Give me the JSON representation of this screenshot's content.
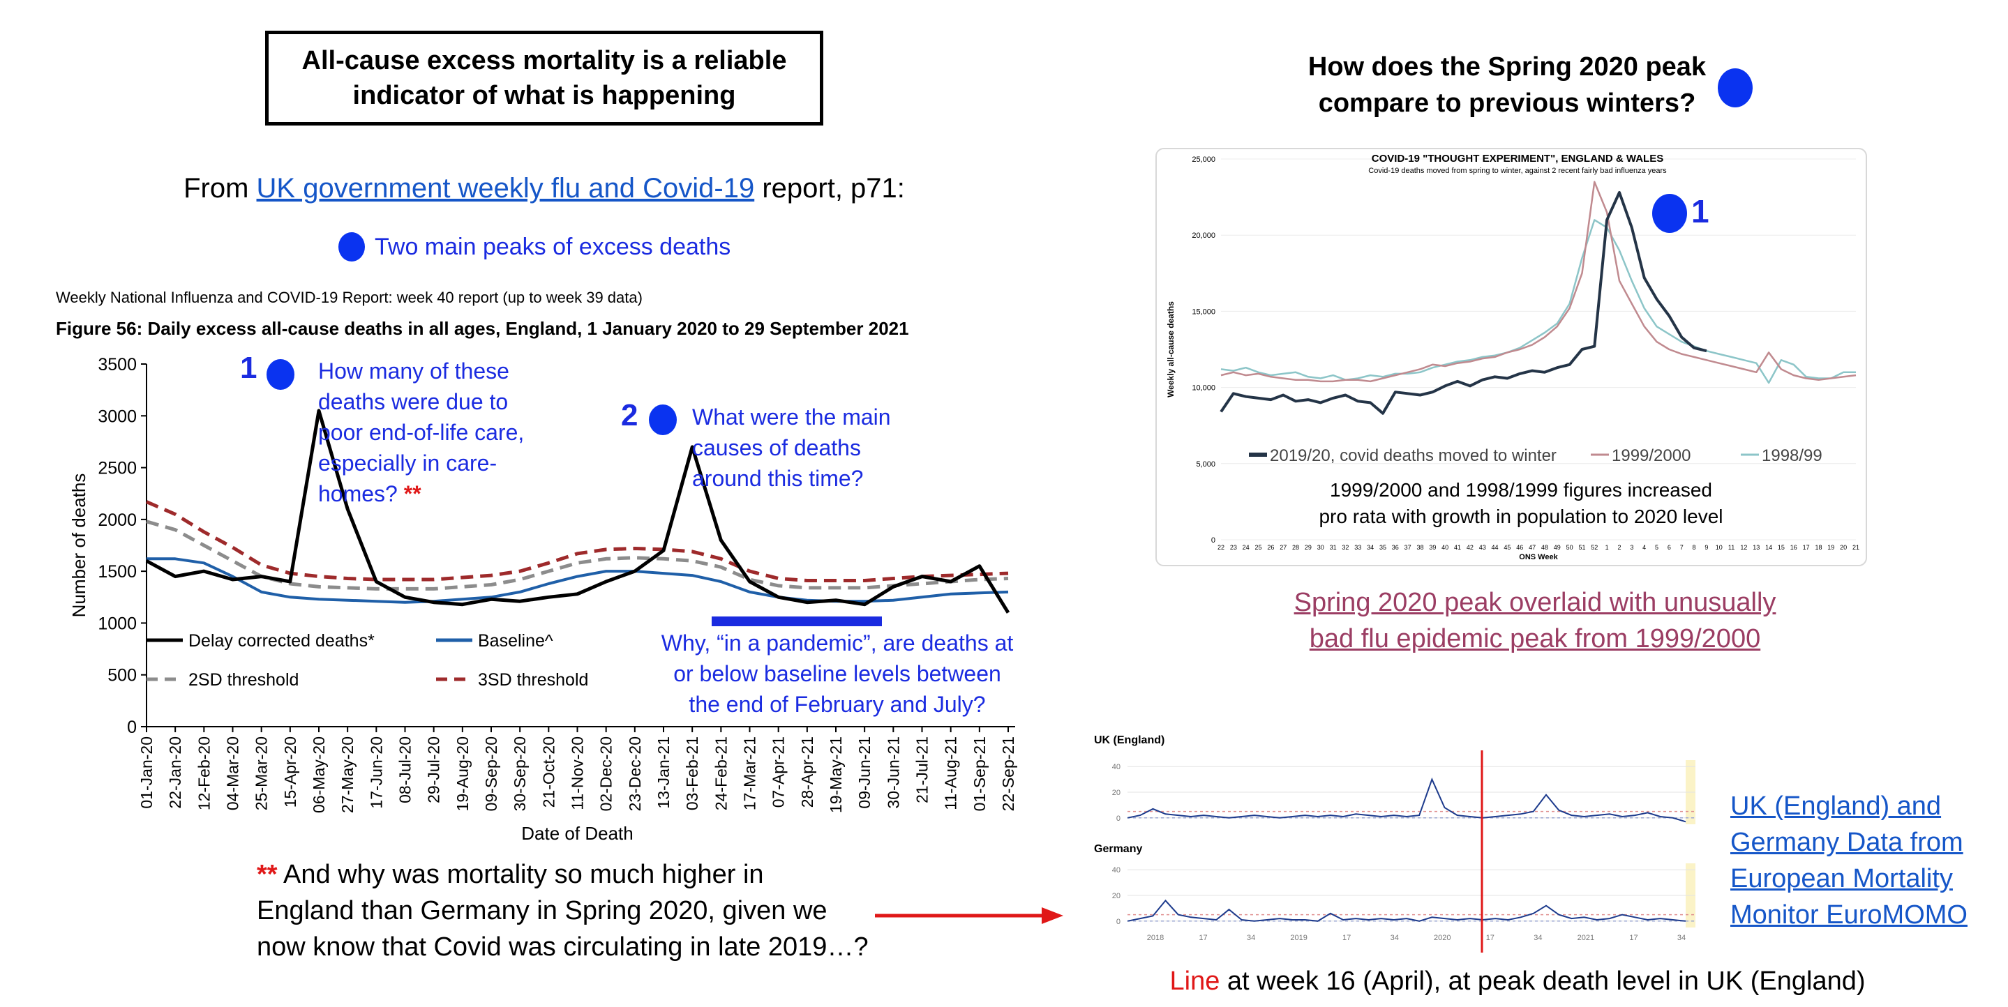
{
  "left_panel": {
    "title_line1": "All-cause excess mortality is a reliable",
    "title_line2": "indicator of what is happening",
    "from_prefix": "From ",
    "from_link": "UK government weekly flu and Covid-19",
    "from_suffix": " report, p71:",
    "peaks_note": "Two main peaks of excess deaths",
    "report_header": "Weekly National Influenza and COVID-19 Report: week 40 report (up to week 39 data)",
    "figure_title": "Figure 56: Daily excess all-cause deaths in all ages, England, 1 January 2020 to 29 September 2021",
    "annotation_1_number": "1",
    "annotation_1_lines": [
      "How many of these",
      "deaths were due to",
      "poor end-of-life care,",
      "especially in care-",
      "homes? "
    ],
    "annotation_1_stars": "**",
    "annotation_2_number": "2",
    "annotation_2_lines": [
      "What were the main",
      "causes of deaths",
      "around this time?"
    ],
    "annotation_3_lines": [
      "Why, “in a pandemic”, are deaths at",
      "or below baseline levels between",
      "the end of February and July?"
    ],
    "bottom_note_stars": "**",
    "bottom_note_line1": " And why was mortality so much higher in",
    "bottom_note_line2": "England than Germany in Spring 2020, given we",
    "bottom_note_line3": "now know that Covid was circulating in late 2019…?"
  },
  "right_panel": {
    "question_line1": "How does the Spring 2020 peak",
    "question_line2": "compare to previous winters?",
    "peak_marker_number": "1",
    "thought_experiment_note_line1": "1999/2000 and 1998/1999 figures increased",
    "thought_experiment_note_line2": "pro rata with growth in population to 2020 level",
    "spring_caption_line1": "Spring 2020 peak overlaid with unusually",
    "spring_caption_line2": "bad flu epidemic peak from 1999/2000",
    "euromomo_link_lines": [
      "UK (England) and",
      "Germany Data from",
      "European Mortality",
      "Monitor EuroMOMO"
    ],
    "line_caption_red": "Line",
    "line_caption_rest": " at week 16 (April), at peak death level in UK (England)"
  },
  "colors": {
    "annotation_blue": "#1a2be0",
    "link_blue": "#1556c8",
    "marker_blue": "#0a33f0",
    "star_red": "#e01818",
    "caption_mauve": "#9b3d63"
  },
  "chart_data": [
    {
      "type": "line",
      "title": "Figure 56: Daily excess all-cause deaths in all ages, England, 1 January 2020 to 29 September 2021",
      "xlabel": "Date of Death",
      "ylabel": "Number of deaths",
      "ylim": [
        0,
        3500
      ],
      "yticks": [
        0,
        500,
        1000,
        1500,
        2000,
        2500,
        3000,
        3500
      ],
      "x_tick_labels": [
        "01-Jan-20",
        "22-Jan-20",
        "12-Feb-20",
        "04-Mar-20",
        "25-Mar-20",
        "15-Apr-20",
        "06-May-20",
        "27-May-20",
        "17-Jun-20",
        "08-Jul-20",
        "29-Jul-20",
        "19-Aug-20",
        "09-Sep-20",
        "30-Sep-20",
        "21-Oct-20",
        "11-Nov-20",
        "02-Dec-20",
        "23-Dec-20",
        "13-Jan-21",
        "03-Feb-21",
        "24-Feb-21",
        "17-Mar-21",
        "07-Apr-21",
        "28-Apr-21",
        "19-May-21",
        "09-Jun-21",
        "30-Jun-21",
        "21-Jul-21",
        "11-Aug-21",
        "01-Sep-21",
        "22-Sep-21"
      ],
      "legend": [
        {
          "name": "Delay corrected deaths*",
          "color": "#000000",
          "dash": "solid"
        },
        {
          "name": "Baseline^",
          "color": "#1f5fa8",
          "dash": "solid"
        },
        {
          "name": "2SD threshold",
          "color": "#8c8c8c",
          "dash": "dashed"
        },
        {
          "name": "3SD threshold",
          "color": "#9e2a2b",
          "dash": "dashed"
        }
      ],
      "series": [
        {
          "name": "Delay corrected deaths*",
          "values": [
            1600,
            1450,
            1500,
            1420,
            1450,
            1400,
            3050,
            2100,
            1400,
            1250,
            1200,
            1180,
            1230,
            1210,
            1250,
            1280,
            1400,
            1500,
            1700,
            2700,
            1800,
            1400,
            1250,
            1200,
            1220,
            1180,
            1350,
            1450,
            1400,
            1550,
            1100
          ]
        },
        {
          "name": "Baseline^",
          "values": [
            1620,
            1620,
            1580,
            1450,
            1300,
            1250,
            1230,
            1220,
            1210,
            1200,
            1210,
            1230,
            1250,
            1300,
            1380,
            1450,
            1500,
            1500,
            1480,
            1460,
            1400,
            1300,
            1250,
            1220,
            1210,
            1210,
            1220,
            1250,
            1280,
            1290,
            1300
          ]
        },
        {
          "name": "2SD threshold",
          "values": [
            1980,
            1900,
            1750,
            1600,
            1450,
            1380,
            1350,
            1340,
            1330,
            1330,
            1330,
            1350,
            1370,
            1420,
            1500,
            1580,
            1620,
            1630,
            1620,
            1600,
            1540,
            1420,
            1360,
            1340,
            1340,
            1340,
            1360,
            1380,
            1400,
            1420,
            1430
          ]
        },
        {
          "name": "3SD threshold",
          "values": [
            2170,
            2050,
            1880,
            1730,
            1560,
            1480,
            1450,
            1430,
            1420,
            1420,
            1420,
            1440,
            1460,
            1500,
            1580,
            1670,
            1710,
            1720,
            1710,
            1690,
            1620,
            1500,
            1430,
            1410,
            1410,
            1410,
            1430,
            1450,
            1460,
            1470,
            1480
          ]
        }
      ]
    },
    {
      "type": "line",
      "title": "COVID-19 \"THOUGHT EXPERIMENT\", ENGLAND & WALES",
      "subtitle": "Covid-19 deaths moved from spring to winter, against 2 recent fairly bad influenza years",
      "xlabel": "ONS Week",
      "ylabel": "Weekly all-cause deaths",
      "ylim": [
        0,
        25000
      ],
      "yticks": [
        0,
        5000,
        10000,
        15000,
        20000,
        25000
      ],
      "x_tick_labels": [
        "22",
        "23",
        "24",
        "25",
        "26",
        "27",
        "28",
        "29",
        "30",
        "31",
        "32",
        "33",
        "34",
        "35",
        "36",
        "37",
        "38",
        "39",
        "40",
        "41",
        "42",
        "43",
        "44",
        "45",
        "46",
        "47",
        "48",
        "49",
        "50",
        "51",
        "52",
        "1",
        "2",
        "3",
        "4",
        "5",
        "6",
        "7",
        "8",
        "9",
        "10",
        "11",
        "12",
        "13",
        "14",
        "15",
        "16",
        "17",
        "18",
        "19",
        "20",
        "21"
      ],
      "series": [
        {
          "name": "2019/20, covid deaths moved to winter",
          "color": "#243447",
          "values": [
            8400,
            9600,
            9400,
            9300,
            9200,
            9500,
            9100,
            9200,
            9000,
            9300,
            9500,
            9100,
            9000,
            8300,
            9700,
            9600,
            9500,
            9700,
            10100,
            10400,
            10100,
            10500,
            10700,
            10600,
            10900,
            11100,
            11000,
            11300,
            11500,
            12500,
            12700,
            21000,
            22800,
            20500,
            17200,
            15800,
            14700,
            13300,
            12600,
            12400
          ]
        },
        {
          "name": "1999/2000",
          "color": "#c08a8f",
          "values": [
            10800,
            11000,
            10800,
            10900,
            10700,
            10600,
            10500,
            10500,
            10400,
            10400,
            10500,
            10500,
            10400,
            10600,
            10800,
            11000,
            11200,
            11500,
            11400,
            11600,
            11700,
            11900,
            12000,
            12300,
            12500,
            12800,
            13300,
            14000,
            15200,
            17500,
            23500,
            21500,
            17000,
            15500,
            14000,
            13000,
            12500,
            12200,
            12000,
            11800,
            11600,
            11400,
            11200,
            11000,
            12300,
            11200,
            10800,
            10600,
            10500,
            10600,
            10700,
            10800
          ]
        },
        {
          "name": "1998/99",
          "color": "#8cc5c8",
          "values": [
            11200,
            11100,
            11300,
            11000,
            10800,
            10900,
            11000,
            10700,
            10600,
            10800,
            10500,
            10600,
            10800,
            10700,
            10900,
            10900,
            11000,
            11300,
            11500,
            11700,
            11800,
            12000,
            12100,
            12300,
            12600,
            13100,
            13600,
            14200,
            15500,
            18500,
            21000,
            20500,
            19000,
            17000,
            15200,
            14000,
            13500,
            13000,
            12700,
            12400,
            12200,
            12000,
            11800,
            11600,
            10300,
            11800,
            11500,
            10700,
            10600,
            10600,
            11000,
            11000
          ]
        }
      ],
      "legend": [
        "2019/20, covid deaths moved to winter",
        "1999/2000",
        "1998/99"
      ]
    },
    {
      "type": "line",
      "title": "UK (England)",
      "ylim": [
        -5,
        45
      ],
      "yticks": [
        0,
        20,
        40
      ],
      "x_tick_labels": [
        "2018",
        "17",
        "34",
        "2019",
        "17",
        "34",
        "2020",
        "17",
        "34",
        "2021",
        "17",
        "34"
      ],
      "series": [
        {
          "name": "UK (England)",
          "values": [
            0,
            2,
            7,
            3,
            2,
            1,
            2,
            1,
            0,
            1,
            2,
            1,
            0,
            1,
            2,
            1,
            2,
            1,
            3,
            2,
            1,
            2,
            1,
            2,
            30,
            8,
            2,
            1,
            0,
            1,
            2,
            3,
            5,
            18,
            6,
            2,
            1,
            2,
            3,
            1,
            2,
            4,
            1,
            0,
            -3
          ]
        }
      ]
    },
    {
      "type": "line",
      "title": "Germany",
      "ylim": [
        -5,
        45
      ],
      "yticks": [
        0,
        20,
        40
      ],
      "x_tick_labels": [
        "2018",
        "17",
        "34",
        "2019",
        "17",
        "34",
        "2020",
        "17",
        "34",
        "2021",
        "17",
        "34"
      ],
      "series": [
        {
          "name": "Germany",
          "values": [
            0,
            2,
            4,
            16,
            5,
            3,
            2,
            1,
            9,
            1,
            0,
            1,
            2,
            1,
            1,
            0,
            6,
            1,
            2,
            1,
            2,
            1,
            2,
            0,
            3,
            2,
            1,
            2,
            1,
            2,
            1,
            3,
            6,
            12,
            5,
            2,
            3,
            1,
            2,
            5,
            3,
            1,
            2,
            1,
            0
          ]
        }
      ]
    }
  ]
}
